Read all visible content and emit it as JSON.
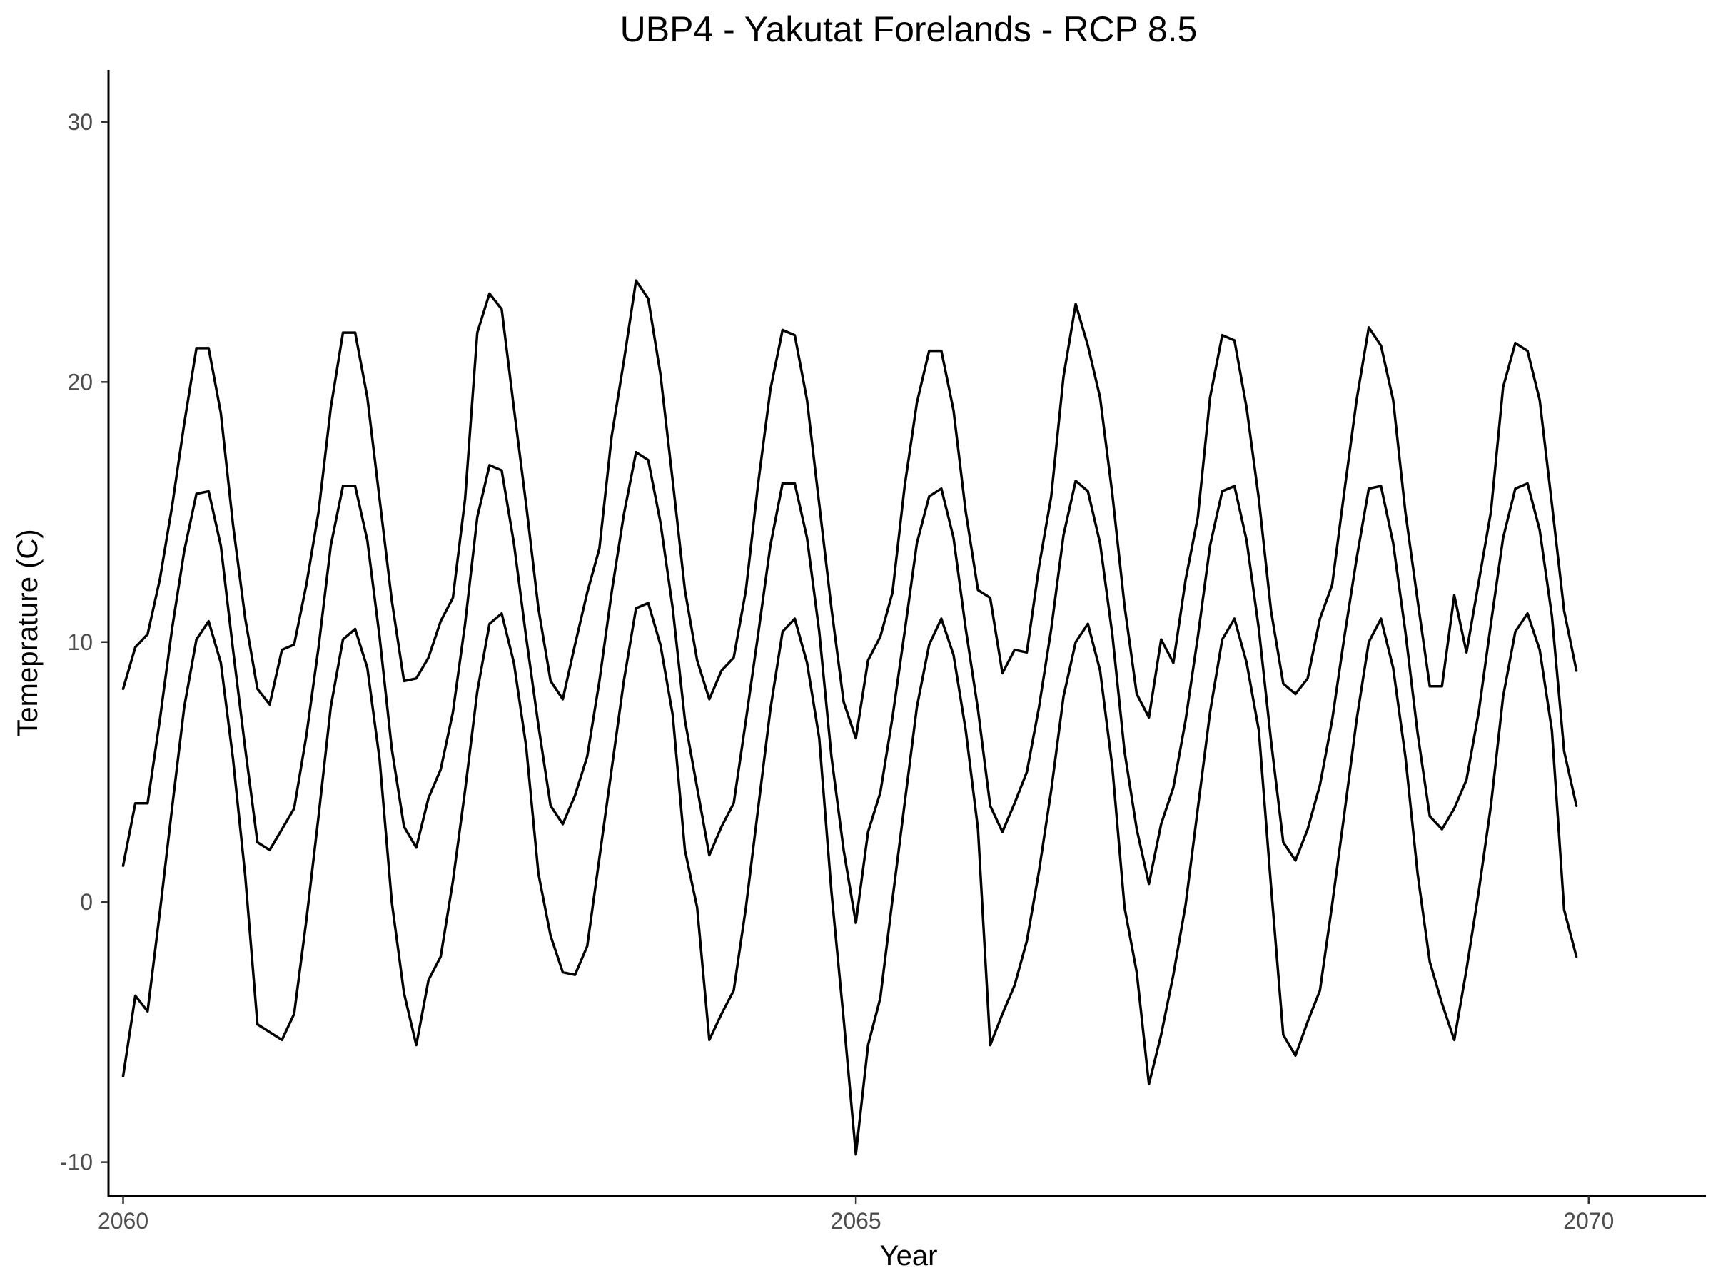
{
  "chart_data": {
    "type": "line",
    "title": "UBP4 - Yakutat Forelands - RCP 8.5",
    "xlabel": "Year",
    "ylabel": "Temeprature (C)",
    "xlim": [
      2059.9,
      2070.8
    ],
    "ylim": [
      -11.3,
      32
    ],
    "x_ticks": [
      2060,
      2065,
      2070
    ],
    "x_tick_labels": [
      "2060",
      "2065",
      "2070"
    ],
    "y_ticks": [
      -10,
      0,
      10,
      20,
      30
    ],
    "y_tick_labels": [
      "-10",
      "0",
      "10",
      "20",
      "30"
    ],
    "grid": false,
    "legend": "none",
    "x_start": 2060,
    "x_step": 0.08333,
    "series": [
      {
        "values": [
          8.2,
          9.8,
          10.3,
          12.4,
          15.2,
          18.4,
          21.3,
          21.3,
          18.8,
          14.5,
          10.9,
          8.2,
          7.6,
          9.7,
          9.9,
          12.2,
          15.0,
          19.0,
          21.9,
          21.9,
          19.4,
          15.5,
          11.6,
          8.5,
          8.6,
          9.4,
          10.8,
          11.7,
          15.5,
          21.9,
          23.4,
          22.8,
          19.0,
          15.3,
          11.3,
          8.5,
          7.8,
          9.9,
          11.9,
          13.6,
          17.9,
          20.8,
          23.9,
          23.2,
          20.3,
          16.2,
          12.0,
          9.3,
          7.8,
          8.9,
          9.4,
          12.0,
          16.1,
          19.7,
          22.0,
          21.8,
          19.3,
          15.3,
          11.3,
          7.7,
          6.3,
          9.3,
          10.2,
          11.9,
          16.0,
          19.2,
          21.2,
          21.2,
          18.9,
          15.0,
          12.0,
          11.7,
          8.8,
          9.7,
          9.6,
          12.9,
          15.6,
          20.2,
          23.0,
          21.4,
          19.4,
          15.7,
          11.4,
          8.0,
          7.1,
          10.1,
          9.2,
          12.4,
          14.8,
          19.4,
          21.8,
          21.6,
          19.0,
          15.5,
          11.2,
          8.4,
          8.0,
          8.6,
          10.9,
          12.2,
          15.8,
          19.3,
          22.1,
          21.4,
          19.3,
          15.0,
          11.6,
          8.3,
          8.3,
          11.8,
          9.6,
          12.3,
          15.0,
          19.8,
          21.5,
          21.2,
          19.3,
          15.3,
          11.2,
          8.9
        ]
      },
      {
        "values": [
          1.4,
          3.8,
          3.8,
          7.0,
          10.5,
          13.5,
          15.7,
          15.8,
          13.7,
          9.7,
          5.9,
          2.3,
          2.0,
          2.8,
          3.6,
          6.4,
          9.8,
          13.7,
          16.0,
          16.0,
          13.9,
          10.2,
          5.9,
          2.9,
          2.1,
          4.0,
          5.1,
          7.3,
          10.7,
          14.8,
          16.8,
          16.6,
          13.8,
          10.2,
          6.8,
          3.7,
          3.0,
          4.1,
          5.6,
          8.5,
          11.9,
          14.9,
          17.3,
          17.0,
          14.6,
          11.3,
          7.0,
          4.4,
          1.8,
          2.9,
          3.8,
          7.0,
          10.3,
          13.7,
          16.1,
          16.1,
          14.0,
          10.4,
          5.6,
          2.0,
          -0.8,
          2.7,
          4.2,
          7.1,
          10.4,
          13.8,
          15.6,
          15.9,
          14.0,
          10.5,
          7.4,
          3.7,
          2.7,
          3.8,
          5.0,
          7.5,
          10.5,
          14.1,
          16.2,
          15.8,
          13.8,
          10.3,
          5.8,
          2.8,
          0.7,
          3.0,
          4.4,
          7.0,
          10.2,
          13.7,
          15.8,
          16.0,
          13.9,
          10.5,
          6.2,
          2.3,
          1.6,
          2.8,
          4.5,
          7.0,
          10.2,
          13.2,
          15.9,
          16.0,
          13.8,
          10.4,
          6.5,
          3.3,
          2.8,
          3.6,
          4.7,
          7.3,
          10.7,
          14.0,
          15.9,
          16.1,
          14.3,
          11.0,
          5.8,
          3.7
        ]
      },
      {
        "values": [
          -6.7,
          -3.6,
          -4.2,
          -0.4,
          3.6,
          7.5,
          10.1,
          10.8,
          9.2,
          5.5,
          1.0,
          -4.7,
          -5.0,
          -5.3,
          -4.3,
          -0.7,
          3.3,
          7.5,
          10.1,
          10.5,
          9.0,
          5.5,
          0.0,
          -3.5,
          -5.5,
          -3.0,
          -2.1,
          0.8,
          4.3,
          8.1,
          10.7,
          11.1,
          9.2,
          6.0,
          1.1,
          -1.3,
          -2.7,
          -2.8,
          -1.7,
          1.7,
          5.1,
          8.5,
          11.3,
          11.5,
          9.9,
          7.2,
          2.0,
          -0.2,
          -5.3,
          -4.3,
          -3.4,
          -0.2,
          3.6,
          7.4,
          10.4,
          10.9,
          9.2,
          6.3,
          0.4,
          -4.5,
          -9.7,
          -5.5,
          -3.7,
          0.1,
          3.8,
          7.5,
          9.9,
          10.9,
          9.5,
          6.6,
          2.8,
          -5.5,
          -4.3,
          -3.2,
          -1.5,
          1.2,
          4.3,
          7.9,
          10.0,
          10.7,
          8.9,
          5.2,
          -0.2,
          -2.7,
          -7.0,
          -5.1,
          -2.8,
          -0.1,
          3.6,
          7.3,
          10.1,
          10.9,
          9.2,
          6.6,
          0.6,
          -5.1,
          -5.9,
          -4.6,
          -3.4,
          -0.1,
          3.4,
          7.0,
          10.0,
          10.9,
          9.0,
          5.6,
          1.1,
          -2.3,
          -3.9,
          -5.3,
          -2.6,
          0.4,
          3.7,
          7.9,
          10.4,
          11.1,
          9.7,
          6.6,
          -0.3,
          -2.1
        ]
      }
    ]
  }
}
